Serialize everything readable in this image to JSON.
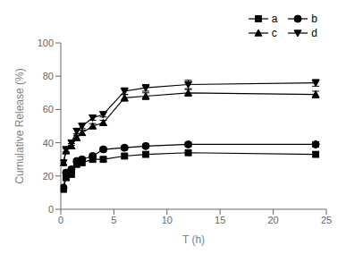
{
  "chart_data": {
    "type": "line",
    "xlabel": "T (h)",
    "ylabel": "Cumulative Release (%)",
    "x": [
      0.25,
      0.5,
      1.0,
      1.5,
      2.0,
      3.0,
      4.0,
      6.0,
      8.0,
      12.0,
      24.0
    ],
    "series": [
      {
        "name": "a",
        "marker": "square",
        "values": [
          12,
          19,
          21,
          27,
          28,
          30,
          30,
          32,
          33,
          34,
          33
        ],
        "yerr": [
          1.0,
          1.2,
          1.2,
          1.2,
          1.2,
          1.2,
          1.2,
          1.2,
          1.2,
          1.2,
          1.5
        ]
      },
      {
        "name": "b",
        "marker": "circle",
        "values": [
          13,
          22,
          24,
          29,
          30,
          32,
          36,
          37,
          38,
          39,
          39
        ],
        "yerr": [
          1.0,
          1.2,
          1.2,
          1.2,
          1.2,
          1.2,
          1.2,
          1.2,
          1.2,
          1.2,
          1.5
        ]
      },
      {
        "name": "c",
        "marker": "triangle-up",
        "values": [
          28,
          35,
          38,
          43,
          46,
          50,
          52,
          67,
          68,
          70,
          69
        ],
        "yerr": [
          1.5,
          1.5,
          1.5,
          1.5,
          1.5,
          1.5,
          1.5,
          2.0,
          2.0,
          2.0,
          2.0
        ]
      },
      {
        "name": "d",
        "marker": "triangle-down",
        "values": [
          28,
          36,
          40,
          47,
          50,
          55,
          57,
          71,
          73,
          75,
          76
        ],
        "yerr": [
          1.5,
          1.5,
          1.5,
          1.5,
          1.5,
          1.5,
          1.5,
          2.0,
          2.0,
          2.5,
          2.0
        ]
      }
    ],
    "xlim": [
      0,
      25
    ],
    "ylim": [
      0,
      100
    ],
    "xticks": [
      0,
      5,
      10,
      15,
      20,
      25
    ],
    "yticks": [
      0,
      20,
      40,
      60,
      80,
      100
    ],
    "color": "black",
    "line_style": "solid",
    "legend": "upper right"
  }
}
